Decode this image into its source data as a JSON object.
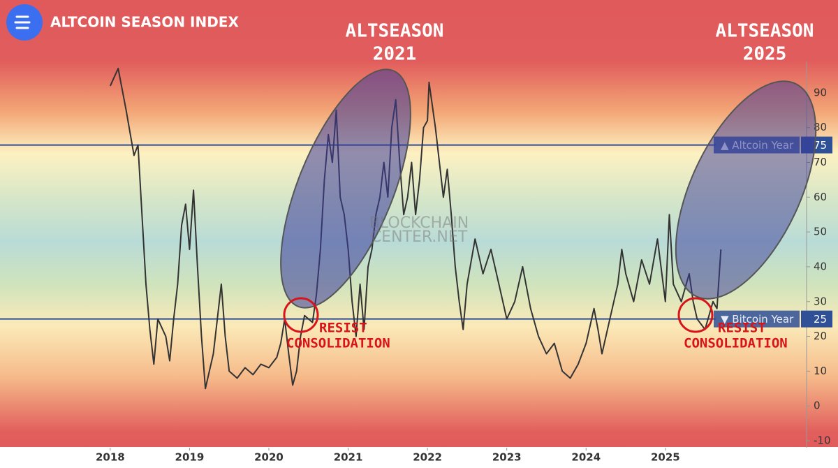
{
  "chart_data": {
    "type": "line",
    "title": "ALTCOIN SEASON INDEX",
    "annotations": [
      {
        "lines": [
          "ALTSEASON",
          "2021"
        ]
      },
      {
        "lines": [
          "ALTSEASON",
          "2025"
        ]
      },
      {
        "lines": [
          "RESIST",
          "CONSOLIDATION"
        ]
      },
      {
        "lines": [
          "RESIST",
          "CONSOLIDATION"
        ]
      }
    ],
    "watermark": [
      "BLOCKCHAIN",
      "CENTER.NET"
    ],
    "thresholds": [
      {
        "label": "▲ Altcoin Year",
        "value": 75
      },
      {
        "label": "▼ Bitcoin Year",
        "value": 25
      }
    ],
    "x": [
      2018.0,
      2018.1,
      2018.2,
      2018.3,
      2018.35,
      2018.4,
      2018.45,
      2018.5,
      2018.55,
      2018.6,
      2018.7,
      2018.75,
      2018.8,
      2018.85,
      2018.9,
      2018.95,
      2019.0,
      2019.05,
      2019.1,
      2019.15,
      2019.2,
      2019.25,
      2019.3,
      2019.35,
      2019.4,
      2019.45,
      2019.5,
      2019.6,
      2019.7,
      2019.8,
      2019.9,
      2020.0,
      2020.1,
      2020.15,
      2020.2,
      2020.25,
      2020.3,
      2020.35,
      2020.4,
      2020.45,
      2020.55,
      2020.6,
      2020.65,
      2020.7,
      2020.75,
      2020.8,
      2020.85,
      2020.9,
      2020.95,
      2021.0,
      2021.05,
      2021.1,
      2021.15,
      2021.2,
      2021.25,
      2021.3,
      2021.35,
      2021.4,
      2021.45,
      2021.5,
      2021.55,
      2021.6,
      2021.65,
      2021.7,
      2021.75,
      2021.8,
      2021.85,
      2021.9,
      2021.95,
      2022.0,
      2022.02,
      2022.1,
      2022.15,
      2022.2,
      2022.25,
      2022.3,
      2022.35,
      2022.4,
      2022.45,
      2022.5,
      2022.6,
      2022.7,
      2022.8,
      2022.9,
      2023.0,
      2023.1,
      2023.2,
      2023.3,
      2023.4,
      2023.5,
      2023.6,
      2023.7,
      2023.8,
      2023.9,
      2024.0,
      2024.1,
      2024.15,
      2024.2,
      2024.3,
      2024.4,
      2024.45,
      2024.5,
      2024.6,
      2024.7,
      2024.8,
      2024.9,
      2025.0,
      2025.05,
      2025.1,
      2025.2,
      2025.3,
      2025.35,
      2025.4,
      2025.5,
      2025.6,
      2025.65,
      2025.7
    ],
    "series": [
      {
        "color": "#333333",
        "values": [
          92,
          97,
          85,
          72,
          75,
          55,
          35,
          22,
          12,
          25,
          20,
          13,
          25,
          35,
          52,
          58,
          45,
          62,
          40,
          20,
          5,
          10,
          15,
          25,
          35,
          20,
          10,
          8,
          11,
          9,
          12,
          11,
          14,
          18,
          25,
          15,
          6,
          10,
          20,
          26,
          24,
          32,
          45,
          65,
          78,
          70,
          85,
          60,
          55,
          45,
          30,
          20,
          35,
          22,
          40,
          45,
          55,
          60,
          70,
          60,
          80,
          88,
          70,
          55,
          60,
          70,
          55,
          65,
          80,
          82,
          93,
          80,
          70,
          60,
          68,
          55,
          40,
          30,
          22,
          35,
          48,
          38,
          45,
          35,
          25,
          30,
          40,
          28,
          20,
          15,
          18,
          10,
          8,
          12,
          18,
          28,
          22,
          15,
          25,
          35,
          45,
          38,
          30,
          42,
          35,
          48,
          30,
          55,
          35,
          30,
          38,
          30,
          25,
          22,
          30,
          28,
          45
        ]
      }
    ],
    "xlim": [
      2016.61,
      2026.78
    ],
    "xticks": [
      2018,
      2019,
      2020,
      2021,
      2022,
      2023,
      2024,
      2025
    ],
    "ylim": [
      -12,
      99
    ],
    "yticks": [
      -10,
      0,
      10,
      20,
      30,
      40,
      50,
      60,
      70,
      80,
      90
    ]
  }
}
